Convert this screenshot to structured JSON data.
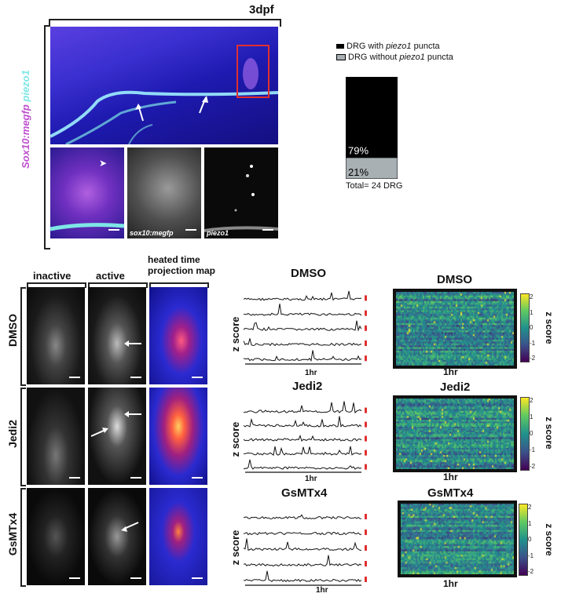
{
  "top": {
    "title": "3dpf",
    "vertical_label_part1": "Sox10:megfp",
    "vertical_label_part2": "piezo1",
    "inset_labels": [
      "sox10:megfp",
      "piezo1"
    ]
  },
  "chart_data": {
    "type": "bar",
    "legend": [
      {
        "label_pre": "DRG with ",
        "label_em": "piezo1",
        "label_post": " puncta",
        "color": "#000000"
      },
      {
        "label_pre": "DRG without ",
        "label_em": "piezo1",
        "label_post": " puncta",
        "color": "#a9b0b3"
      }
    ],
    "categories": [
      "DRG"
    ],
    "series": [
      {
        "name": "DRG without piezo1 puncta",
        "values": [
          21
        ],
        "label": "21%"
      },
      {
        "name": "DRG with piezo1 puncta",
        "values": [
          79
        ],
        "label": "79%"
      }
    ],
    "total_label": "Total= 24 DRG",
    "ylim": [
      0,
      100
    ]
  },
  "bottom": {
    "column_headers": [
      "inactive",
      "active",
      "heated time projection map"
    ],
    "rows": [
      "DMSO",
      "Jedi2",
      "GsMTx4"
    ],
    "trace_titles": [
      "DMSO",
      "Jedi2",
      "GsMTx4"
    ],
    "trace_ylabel": "z score",
    "trace_xlabel": "1hr",
    "heatmap_titles": [
      "DMSO",
      "Jedi2",
      "GsMTx4"
    ],
    "heatmap_xlabel": "1hr",
    "colorbar_label": "z score",
    "colorbar_ticks": [
      "2",
      "1",
      "0",
      "-1",
      "-2"
    ]
  },
  "colors": {
    "magenta": "#c050d0",
    "cyan": "#7ee6e6",
    "scale_red": "#e03030"
  }
}
